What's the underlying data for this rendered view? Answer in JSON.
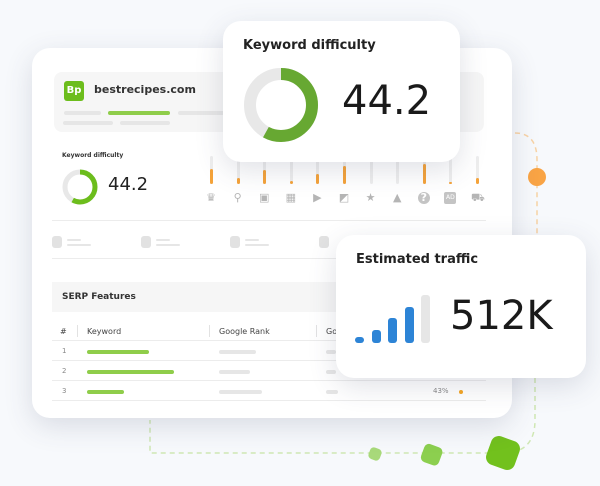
{
  "site": {
    "logo": "Bp",
    "domain": "bestrecipes.com"
  },
  "kd_small": {
    "label": "Keyword difficulty",
    "value": "44.2",
    "gauge_fill": 0.58
  },
  "serp_icons": [
    {
      "icon": "crown-icon",
      "fill": 0.55
    },
    {
      "icon": "map-pin-icon",
      "fill": 0.22
    },
    {
      "icon": "image-icon",
      "fill": 0.5
    },
    {
      "icon": "calendar-icon",
      "fill": 0.12
    },
    {
      "icon": "video-play-icon",
      "fill": 0.36
    },
    {
      "icon": "featured-snippet-icon",
      "fill": 0.65
    },
    {
      "icon": "star-icon",
      "fill": 0
    },
    {
      "icon": "graduation-cap-icon",
      "fill": 0
    },
    {
      "icon": "question-icon",
      "fill": 0.72
    },
    {
      "icon": "ad-icon",
      "fill": 0.08
    },
    {
      "icon": "shopping-cart-icon",
      "fill": 0.22
    }
  ],
  "serp": {
    "title": "SERP Features",
    "columns": [
      "#",
      "Keyword",
      "Google Rank",
      "Go"
    ],
    "rows": [
      {
        "n": "1"
      },
      {
        "n": "2"
      },
      {
        "n": "3",
        "pct": "43%"
      }
    ]
  },
  "kd_card": {
    "title": "Keyword difficulty",
    "value": "44.2",
    "gauge_fill": 0.58
  },
  "traffic_card": {
    "title": "Estimated traffic",
    "value": "512K",
    "bar_levels": [
      0.12,
      0.27,
      0.52,
      0.75,
      1.0
    ],
    "active_bars": 4
  },
  "colors": {
    "green": "#67a832",
    "light_green": "#8fcd4a",
    "orange": "#f5a33a",
    "blue": "#2d84d6"
  }
}
